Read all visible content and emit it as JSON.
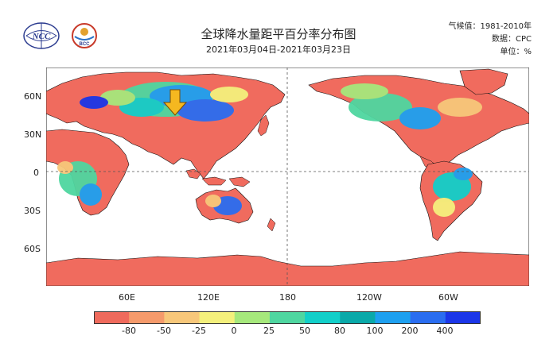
{
  "title": "全球降水量距平百分率分布图",
  "date_range": "2021年03月04日-2021年03月23日",
  "meta": {
    "climate_normal": "气候值：1981-2010年",
    "data_source": "数据：CPC",
    "unit": "单位：%"
  },
  "logos": {
    "left": "NCC",
    "right": "BCC"
  },
  "map": {
    "lat_labels": [
      "60N",
      "30N",
      "0",
      "30S",
      "60S"
    ],
    "lon_labels": [
      "60E",
      "120E",
      "180",
      "120W",
      "60W"
    ],
    "land_color": "#f06b5e",
    "ocean_color": "#ffffff",
    "highlight_arrow_color": "#f5b820"
  },
  "colorbar": {
    "colors": [
      "#ef6a5c",
      "#f59a6b",
      "#f7c77a",
      "#f4f07c",
      "#a6e87c",
      "#4fd6a0",
      "#12cfc9",
      "#0aa9a9",
      "#1ea0f0",
      "#2a6df0",
      "#1b36e8"
    ],
    "labels": [
      "-80",
      "-50",
      "-25",
      "0",
      "25",
      "50",
      "80",
      "100",
      "200",
      "400"
    ]
  }
}
